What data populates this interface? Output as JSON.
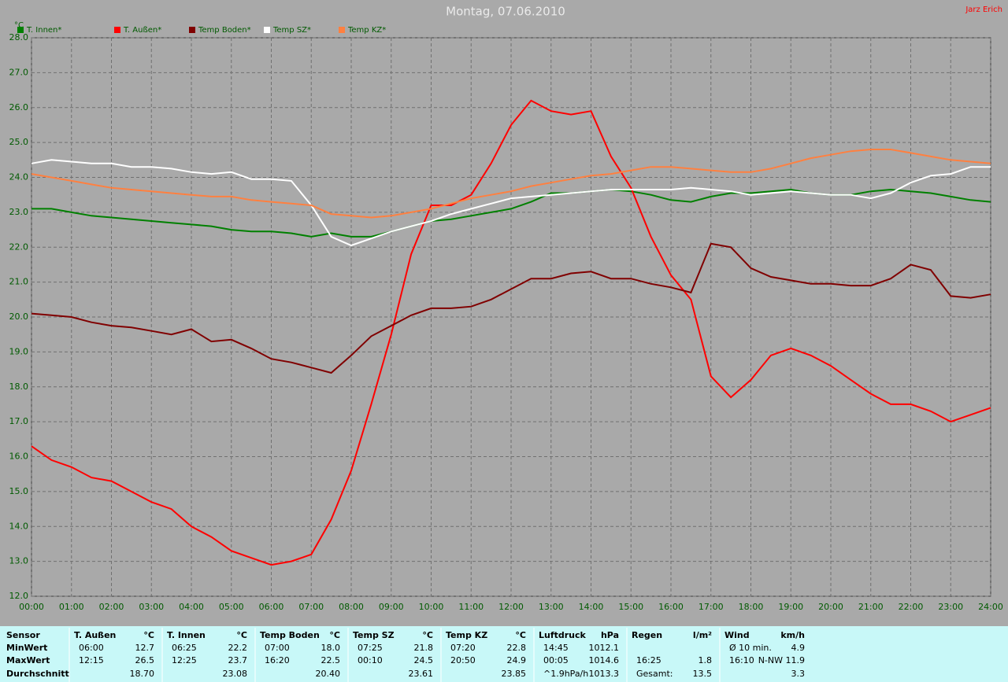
{
  "chart_data": {
    "type": "line",
    "title": "Montag, 07.06.2010",
    "author": "Jarz Erich",
    "ylabel": "°C",
    "x": [
      0,
      0.5,
      1,
      1.5,
      2,
      2.5,
      3,
      3.5,
      4,
      4.5,
      5,
      5.5,
      6,
      6.5,
      7,
      7.5,
      8,
      8.5,
      9,
      9.5,
      10,
      10.5,
      11,
      11.5,
      12,
      12.5,
      13,
      13.5,
      14,
      14.5,
      15,
      15.5,
      16,
      16.5,
      17,
      17.5,
      18,
      18.5,
      19,
      19.5,
      20,
      20.5,
      21,
      21.5,
      22,
      22.5,
      23,
      23.5,
      24
    ],
    "series": [
      {
        "name": "T. Innen*",
        "color": "#008000",
        "values": [
          23.1,
          23.1,
          23.0,
          22.9,
          22.85,
          22.8,
          22.75,
          22.7,
          22.65,
          22.6,
          22.5,
          22.45,
          22.45,
          22.4,
          22.3,
          22.4,
          22.3,
          22.3,
          22.45,
          22.6,
          22.75,
          22.8,
          22.9,
          23.0,
          23.1,
          23.3,
          23.55,
          23.55,
          23.6,
          23.65,
          23.6,
          23.5,
          23.35,
          23.3,
          23.45,
          23.55,
          23.55,
          23.6,
          23.65,
          23.55,
          23.5,
          23.5,
          23.6,
          23.65,
          23.6,
          23.55,
          23.45,
          23.35,
          23.3
        ]
      },
      {
        "name": "T. Außen*",
        "color": "#ff0000",
        "values": [
          16.3,
          15.9,
          15.7,
          15.4,
          15.3,
          15.0,
          14.7,
          14.5,
          14.0,
          13.7,
          13.3,
          13.1,
          12.9,
          13.0,
          13.2,
          14.2,
          15.6,
          17.5,
          19.5,
          21.8,
          23.2,
          23.2,
          23.5,
          24.4,
          25.5,
          26.2,
          25.9,
          25.8,
          25.9,
          24.6,
          23.7,
          22.3,
          21.2,
          20.5,
          18.3,
          17.7,
          18.2,
          18.9,
          19.1,
          18.9,
          18.6,
          18.2,
          17.8,
          17.5,
          17.5,
          17.3,
          17.0,
          17.2,
          17.4
        ]
      },
      {
        "name": "Temp Boden*",
        "color": "#800000",
        "values": [
          20.1,
          20.05,
          20.0,
          19.85,
          19.75,
          19.7,
          19.6,
          19.5,
          19.65,
          19.3,
          19.35,
          19.1,
          18.8,
          18.7,
          18.55,
          18.4,
          18.9,
          19.45,
          19.75,
          20.05,
          20.25,
          20.25,
          20.3,
          20.5,
          20.8,
          21.1,
          21.1,
          21.25,
          21.3,
          21.1,
          21.1,
          20.95,
          20.85,
          20.7,
          22.1,
          22.0,
          21.4,
          21.15,
          21.05,
          20.95,
          20.95,
          20.9,
          20.9,
          21.1,
          21.5,
          21.35,
          20.6,
          20.55,
          20.65
        ]
      },
      {
        "name": "Temp SZ*",
        "color": "#ffffff",
        "values": [
          24.4,
          24.5,
          24.45,
          24.4,
          24.4,
          24.3,
          24.3,
          24.25,
          24.15,
          24.1,
          24.15,
          23.95,
          23.95,
          23.9,
          23.2,
          22.3,
          22.05,
          22.25,
          22.45,
          22.6,
          22.75,
          22.95,
          23.1,
          23.25,
          23.4,
          23.45,
          23.5,
          23.55,
          23.6,
          23.65,
          23.65,
          23.65,
          23.65,
          23.7,
          23.65,
          23.6,
          23.5,
          23.55,
          23.6,
          23.55,
          23.5,
          23.5,
          23.4,
          23.55,
          23.85,
          24.05,
          24.1,
          24.3,
          24.3
        ]
      },
      {
        "name": "Temp KZ*",
        "color": "#ff8040",
        "values": [
          24.1,
          24.0,
          23.9,
          23.8,
          23.7,
          23.65,
          23.6,
          23.55,
          23.5,
          23.45,
          23.45,
          23.35,
          23.3,
          23.25,
          23.2,
          22.95,
          22.9,
          22.85,
          22.9,
          23.0,
          23.1,
          23.25,
          23.4,
          23.5,
          23.6,
          23.75,
          23.85,
          23.95,
          24.05,
          24.1,
          24.2,
          24.3,
          24.3,
          24.25,
          24.2,
          24.15,
          24.15,
          24.25,
          24.4,
          24.55,
          24.65,
          24.75,
          24.8,
          24.8,
          24.7,
          24.6,
          24.5,
          24.45,
          24.4
        ]
      }
    ],
    "xlim": [
      0,
      24
    ],
    "xticks": [
      {
        "value": 0,
        "label": "00:00"
      },
      {
        "value": 1,
        "label": "01:00"
      },
      {
        "value": 2,
        "label": "02:00"
      },
      {
        "value": 3,
        "label": "03:00"
      },
      {
        "value": 4,
        "label": "04:00"
      },
      {
        "value": 5,
        "label": "05:00"
      },
      {
        "value": 6,
        "label": "06:00"
      },
      {
        "value": 7,
        "label": "07:00"
      },
      {
        "value": 8,
        "label": "08:00"
      },
      {
        "value": 9,
        "label": "09:00"
      },
      {
        "value": 10,
        "label": "10:00"
      },
      {
        "value": 11,
        "label": "11:00"
      },
      {
        "value": 12,
        "label": "12:00"
      },
      {
        "value": 13,
        "label": "13:00"
      },
      {
        "value": 14,
        "label": "14:00"
      },
      {
        "value": 15,
        "label": "15:00"
      },
      {
        "value": 16,
        "label": "16:00"
      },
      {
        "value": 17,
        "label": "17:00"
      },
      {
        "value": 18,
        "label": "18:00"
      },
      {
        "value": 19,
        "label": "19:00"
      },
      {
        "value": 20,
        "label": "20:00"
      },
      {
        "value": 21,
        "label": "21:00"
      },
      {
        "value": 22,
        "label": "22:00"
      },
      {
        "value": 23,
        "label": "23:00"
      },
      {
        "value": 24,
        "label": "24:00"
      }
    ],
    "ylim": [
      12,
      28
    ],
    "yticks": [
      {
        "value": 12,
        "label": "12.0"
      },
      {
        "value": 13,
        "label": "13.0"
      },
      {
        "value": 14,
        "label": "14.0"
      },
      {
        "value": 15,
        "label": "15.0"
      },
      {
        "value": 16,
        "label": "16.0"
      },
      {
        "value": 17,
        "label": "17.0"
      },
      {
        "value": 18,
        "label": "18.0"
      },
      {
        "value": 19,
        "label": "19.0"
      },
      {
        "value": 20,
        "label": "20.0"
      },
      {
        "value": 21,
        "label": "21.0"
      },
      {
        "value": 22,
        "label": "22.0"
      },
      {
        "value": 23,
        "label": "23.0"
      },
      {
        "value": 24,
        "label": "24.0"
      },
      {
        "value": 25,
        "label": "25.0"
      },
      {
        "value": 26,
        "label": "26.0"
      },
      {
        "value": 27,
        "label": "27.0"
      },
      {
        "value": 28,
        "label": "28.0"
      }
    ],
    "grid": true
  },
  "table": {
    "row_labels": [
      "Sensor",
      "MinWert",
      "MaxWert",
      "Durchschnitt"
    ],
    "columns": [
      {
        "name": "T. Außen",
        "unit": "°C",
        "rows": [
          [
            "06:00",
            "12.7"
          ],
          [
            "12:15",
            "26.5"
          ],
          [
            "18.70"
          ]
        ]
      },
      {
        "name": "T. Innen",
        "unit": "°C",
        "rows": [
          [
            "06:25",
            "22.2"
          ],
          [
            "12:25",
            "23.7"
          ],
          [
            "23.08"
          ]
        ]
      },
      {
        "name": "Temp Boden",
        "unit": "°C",
        "rows": [
          [
            "07:00",
            "18.0"
          ],
          [
            "16:20",
            "22.5"
          ],
          [
            "20.40"
          ]
        ]
      },
      {
        "name": "Temp SZ",
        "unit": "°C",
        "rows": [
          [
            "07:25",
            "21.8"
          ],
          [
            "00:10",
            "24.5"
          ],
          [
            "23.61"
          ]
        ]
      },
      {
        "name": "Temp KZ",
        "unit": "°C",
        "rows": [
          [
            "07:20",
            "22.8"
          ],
          [
            "20:50",
            "24.9"
          ],
          [
            "23.85"
          ]
        ]
      },
      {
        "name": "Luftdruck",
        "unit": "hPa",
        "rows": [
          [
            "14:45",
            "1012.1"
          ],
          [
            "00:05",
            "1014.6"
          ],
          [
            "^1.9hPa/h",
            "1013.3"
          ]
        ]
      },
      {
        "name": "Regen",
        "unit": "l/m²",
        "rows": [
          [],
          [
            "16:25",
            "1.8"
          ],
          [
            "Gesamt:",
            "13.5"
          ]
        ]
      },
      {
        "name": "Wind",
        "unit": "km/h",
        "rows": [
          [
            "Ø 10 min.",
            "4.9"
          ],
          [
            "16:10",
            "N-NW 11.9"
          ],
          [
            "3.3"
          ]
        ]
      }
    ]
  }
}
